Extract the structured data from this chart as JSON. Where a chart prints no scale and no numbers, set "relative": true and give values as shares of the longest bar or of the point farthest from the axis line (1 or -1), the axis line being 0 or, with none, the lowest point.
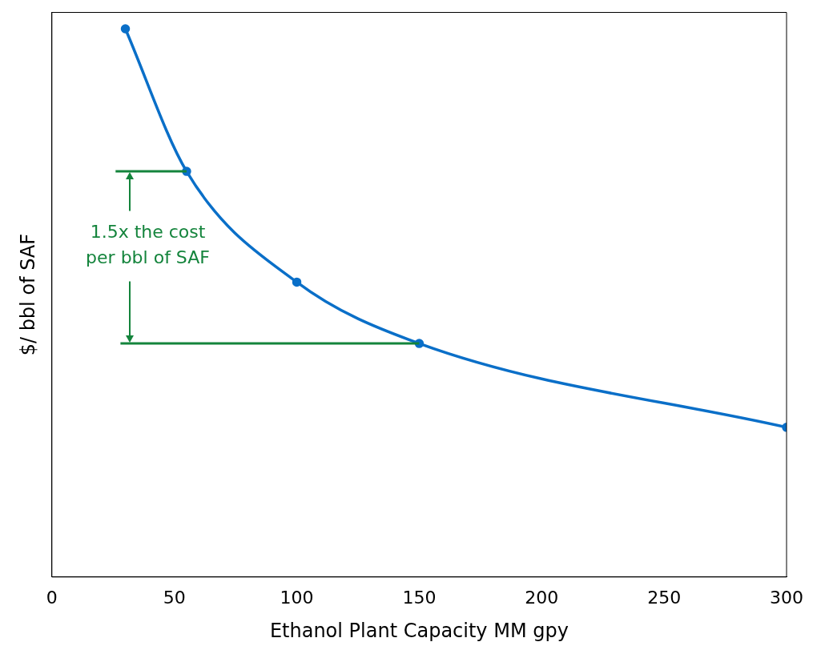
{
  "chart_data": {
    "type": "line",
    "xlabel": "Ethanol Plant Capacity MM gpy",
    "ylabel": "$/ bbl of SAF",
    "relative": true,
    "x": [
      30,
      55,
      100,
      150,
      300
    ],
    "series": [
      {
        "color": "#0a6fc8",
        "values": [
          1,
          0.74,
          0.538,
          0.426,
          0.273
        ]
      },
      {
        "type": "line",
        "color": "#14843c",
        "x": [
          26,
          55
        ],
        "values": [
          0.74,
          0.74
        ],
        "marker": "none"
      },
      {
        "type": "line",
        "color": "#14843c",
        "x": [
          28,
          150
        ],
        "values": [
          0.426,
          0.426
        ],
        "marker": "none"
      }
    ],
    "xlim": [
      0,
      300
    ],
    "xticks": [
      0,
      50,
      100,
      150,
      200,
      250,
      300
    ],
    "marker": "circle",
    "grid": false,
    "legend": false,
    "annotations": [
      "1.5x the cost per bbl of SAF"
    ]
  }
}
